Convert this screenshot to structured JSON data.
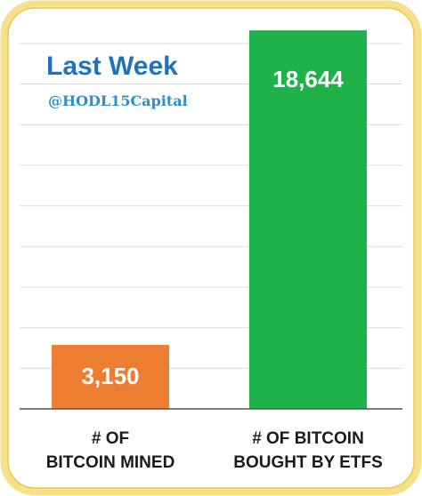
{
  "title": "Last Week",
  "handle": "@HODL15Capital",
  "colors": {
    "frame": "#f7e08a",
    "frame_edge": "#e9c94e",
    "grid": "#dcdcdc",
    "axis": "#555555",
    "title": "#1e73be",
    "handle": "#2a8fc8"
  },
  "chart_data": {
    "type": "bar",
    "categories": [
      "# OF BITCOIN MINED",
      "# OF BITCOIN BOUGHT BY ETFS"
    ],
    "category_lines": [
      [
        "# OF",
        "BITCOIN MINED"
      ],
      [
        "# OF BITCOIN",
        "BOUGHT BY ETFS"
      ]
    ],
    "values": [
      3150,
      18644
    ],
    "value_labels": [
      "3,150",
      "18,644"
    ],
    "bar_colors": [
      "#ed7d31",
      "#1fb14a"
    ],
    "ylim": [
      0,
      19000
    ],
    "grid": true,
    "legend": "none"
  }
}
